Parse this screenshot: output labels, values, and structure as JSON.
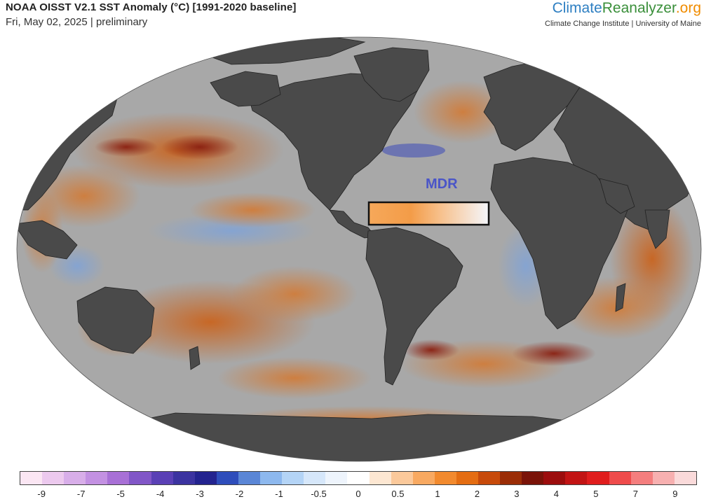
{
  "header": {
    "title": "NOAA OISST V2.1 SST Anomaly (°C) [1991-2020 baseline]",
    "subtitle": "Fri, May 02, 2025 | preliminary"
  },
  "brand": {
    "part_climate": "Climate",
    "part_reanalyzer": "Reanalyzer",
    "part_org": ".org",
    "tagline": "Climate Change Institute | University of Maine"
  },
  "map": {
    "projection": "Robinson-like (elliptical world map)",
    "highlight_region_label": "MDR",
    "ocean_neutral_color": "#a8a8a8",
    "land_color": "#4a4a4a"
  },
  "colorbar": {
    "colors": [
      "#fbe6f3",
      "#ecc9ee",
      "#d8aee9",
      "#c391e2",
      "#a870d6",
      "#8156c7",
      "#5a40b5",
      "#3b33a0",
      "#23238f",
      "#2e4dbb",
      "#5a86d6",
      "#8db8ee",
      "#b4d4f6",
      "#d6e7fa",
      "#eef4fc",
      "#ffffff",
      "#fde7d2",
      "#fbc99b",
      "#f8a961",
      "#f28a2e",
      "#e46d12",
      "#c74a0a",
      "#9b2d06",
      "#7a1308",
      "#9c0d0d",
      "#c21414",
      "#e01d1d",
      "#ef4b4b",
      "#f47e7e",
      "#f7b0b0",
      "#fadada"
    ],
    "tick_labels": [
      "-9",
      "-7",
      "-5",
      "-4",
      "-3",
      "-2",
      "-1",
      "-0.5",
      "0",
      "0.5",
      "1",
      "2",
      "3",
      "4",
      "5",
      "7",
      "9"
    ]
  }
}
